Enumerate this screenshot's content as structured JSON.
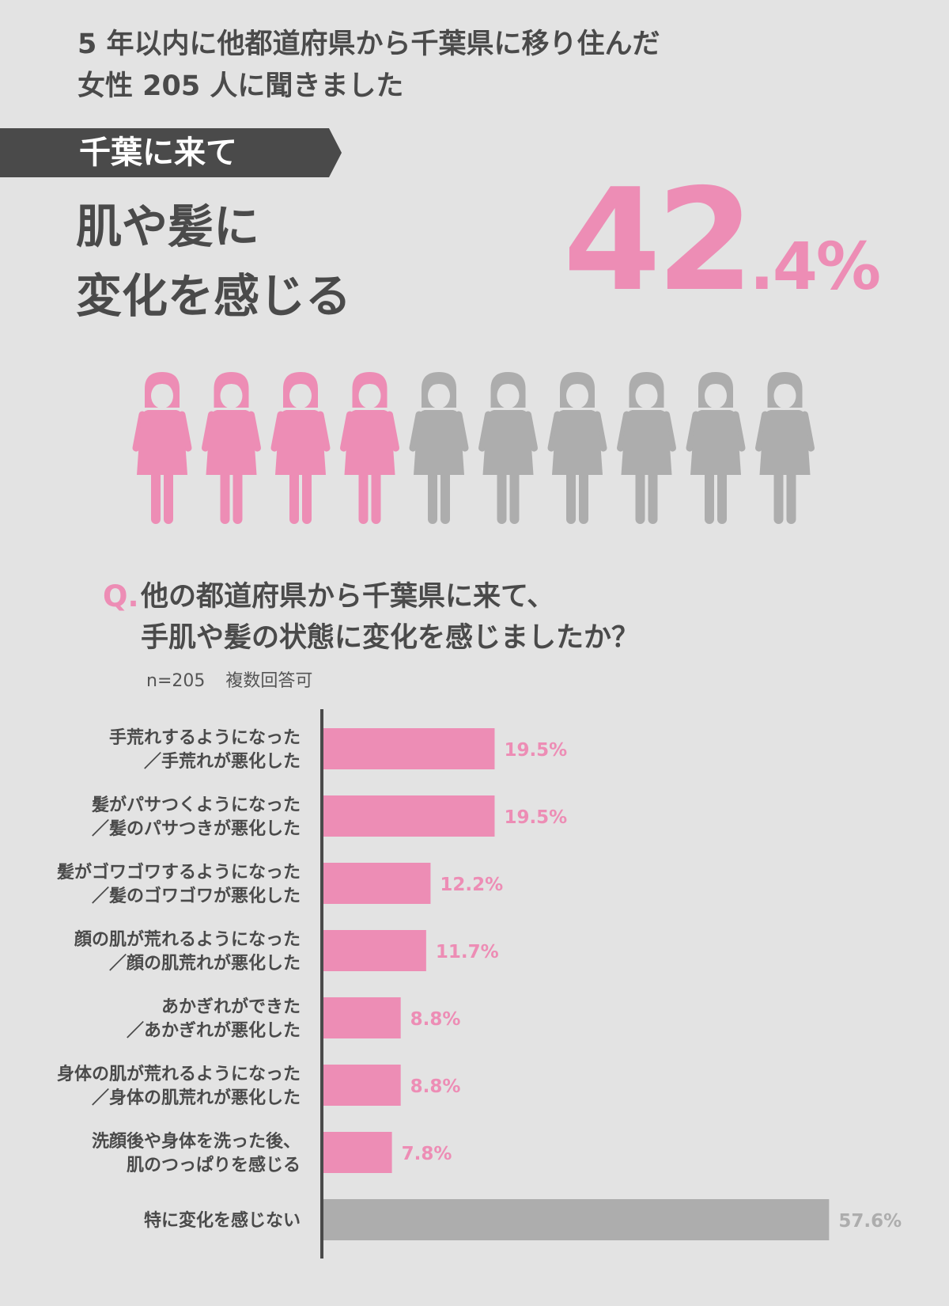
{
  "intro": {
    "line1": "5 年以内に他都道府県から千葉県に移り住んだ",
    "line2": "女性 205 人に聞きました"
  },
  "banner": {
    "label": "千葉に来て"
  },
  "headline": {
    "line1": "肌や髪に",
    "line2": "変化を感じる"
  },
  "big_stat": {
    "integer": "42",
    "fraction": ".4%"
  },
  "people": {
    "total": 10,
    "highlighted": 4
  },
  "question": {
    "mark": "Q.",
    "line1": "他の都道府県から千葉県に来て、",
    "line2": "手肌や髪の状態に変化を感じましたか？"
  },
  "sample_note": {
    "n": "n=205",
    "type": "複数回答可"
  },
  "colors": {
    "pink": "#ed8db5",
    "gray": "#adadad",
    "dark": "#4a4a4a",
    "background": "#e3e3e3"
  },
  "chart_data": {
    "type": "bar",
    "orientation": "horizontal",
    "categories": [
      [
        "手荒れするようになった",
        "／手荒れが悪化した"
      ],
      [
        "髪がパサつくようになった",
        "／髪のパサつきが悪化した"
      ],
      [
        "髪がゴワゴワするようになった",
        "／髪のゴワゴワが悪化した"
      ],
      [
        "顔の肌が荒れるようになった",
        "／顔の肌荒れが悪化した"
      ],
      [
        "あかぎれができた",
        "／あかぎれが悪化した"
      ],
      [
        "身体の肌が荒れるようになった",
        "／身体の肌荒れが悪化した"
      ],
      [
        "洗顔後や身体を洗った後、",
        "肌のつっぱりを感じる"
      ],
      [
        "特に変化を感じない"
      ]
    ],
    "values": [
      19.5,
      19.5,
      12.2,
      11.7,
      8.8,
      8.8,
      7.8,
      57.6
    ],
    "value_labels": [
      "19.5%",
      "19.5%",
      "12.2%",
      "11.7%",
      "8.8%",
      "8.8%",
      "7.8%",
      "57.6%"
    ],
    "highlight": [
      true,
      true,
      true,
      true,
      true,
      true,
      true,
      false
    ],
    "xlim": [
      0,
      100
    ],
    "grid": false
  }
}
